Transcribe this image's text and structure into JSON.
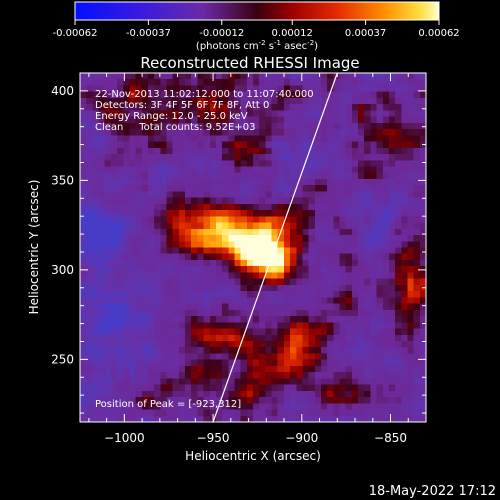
{
  "chart_data": {
    "type": "heatmap",
    "title": "Reconstructed RHESSI Image",
    "colorbar": {
      "ticks": [
        "-0.00062",
        "-0.00037",
        "-0.00012",
        "0.00012",
        "0.00037",
        "0.00062"
      ],
      "tick_values": [
        -0.00062,
        -0.00037,
        -0.00012,
        0.00012,
        0.00037,
        0.00062
      ],
      "range": [
        -0.00062,
        0.00062
      ],
      "units_line1": "(photons cm",
      "units_exp1": "-2",
      "units_line2": " s",
      "units_exp2": "-1",
      "units_line3": " asec",
      "units_exp3": "-2",
      "units_close": ")"
    },
    "info_lines": [
      "22-Nov-2013 11:02:12.000 to 11:07:40.000",
      "Detectors: 3F 4F 5F 6F 7F 8F, Att 0",
      "Energy Range: 12.0 - 25.0 keV",
      "Clean     Total counts: 9.52E+03"
    ],
    "peak_text": "Position of Peak = [-923,312]",
    "peak": {
      "x": -923,
      "y": 312
    },
    "xlabel": "Heliocentric X (arcsec)",
    "ylabel": "Heliocentric Y (arcsec)",
    "xlim": [
      -1025,
      -830
    ],
    "ylim": [
      215,
      410
    ],
    "xticks": [
      -1000,
      -950,
      -900,
      -850
    ],
    "xtick_labels": [
      "−1000",
      "−950",
      "−900",
      "−850"
    ],
    "yticks": [
      250,
      300,
      350,
      400
    ],
    "ytick_labels": [
      "250",
      "300",
      "350",
      "400"
    ],
    "limb_line": [
      [
        -950,
        215
      ],
      [
        -880,
        410
      ]
    ],
    "blobs": [
      {
        "x": -923,
        "y": 312,
        "sx": 9,
        "sy": 9,
        "a": 1.15
      },
      {
        "x": -942,
        "y": 320,
        "sx": 16,
        "sy": 10,
        "a": 0.55
      },
      {
        "x": -960,
        "y": 325,
        "sx": 16,
        "sy": 12,
        "a": 0.45
      },
      {
        "x": -905,
        "y": 325,
        "sx": 10,
        "sy": 9,
        "a": 0.45
      },
      {
        "x": -915,
        "y": 300,
        "sx": 12,
        "sy": 8,
        "a": 0.4
      },
      {
        "x": -950,
        "y": 395,
        "sx": 20,
        "sy": 12,
        "a": 0.4
      },
      {
        "x": -1000,
        "y": 395,
        "sx": 16,
        "sy": 10,
        "a": 0.3
      },
      {
        "x": -985,
        "y": 370,
        "sx": 12,
        "sy": 8,
        "a": 0.25
      },
      {
        "x": -930,
        "y": 370,
        "sx": 10,
        "sy": 10,
        "a": 0.3
      },
      {
        "x": -950,
        "y": 262,
        "sx": 14,
        "sy": 12,
        "a": 0.5
      },
      {
        "x": -905,
        "y": 255,
        "sx": 14,
        "sy": 14,
        "a": 0.55
      },
      {
        "x": -930,
        "y": 232,
        "sx": 14,
        "sy": 10,
        "a": 0.4
      },
      {
        "x": -975,
        "y": 232,
        "sx": 10,
        "sy": 8,
        "a": 0.3
      },
      {
        "x": -875,
        "y": 230,
        "sx": 12,
        "sy": 8,
        "a": 0.35
      },
      {
        "x": -840,
        "y": 290,
        "sx": 8,
        "sy": 22,
        "a": 0.45
      },
      {
        "x": -850,
        "y": 370,
        "sx": 12,
        "sy": 12,
        "a": 0.3
      },
      {
        "x": -880,
        "y": 282,
        "sx": 8,
        "sy": 8,
        "a": 0.25
      },
      {
        "x": -860,
        "y": 330,
        "sx": 10,
        "sy": 10,
        "a": -0.15
      },
      {
        "x": -1015,
        "y": 320,
        "sx": 12,
        "sy": 16,
        "a": -0.35
      },
      {
        "x": -1005,
        "y": 265,
        "sx": 18,
        "sy": 18,
        "a": -0.3
      },
      {
        "x": -860,
        "y": 390,
        "sx": 10,
        "sy": 10,
        "a": 0.2
      }
    ],
    "grid": false
  },
  "footer_date": "18-May-2022 17:12"
}
